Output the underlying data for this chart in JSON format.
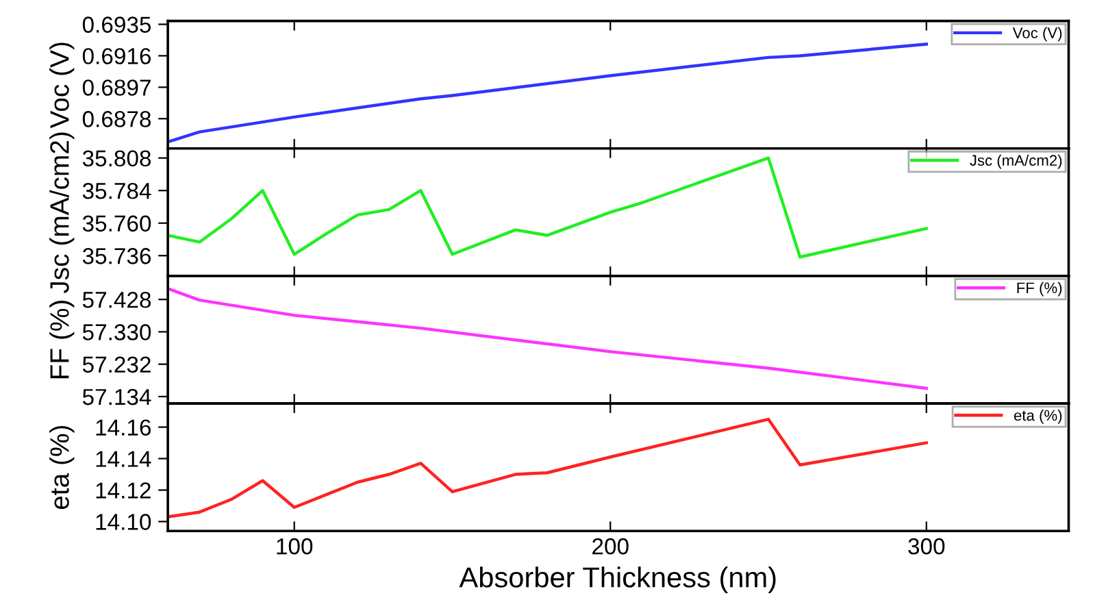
{
  "chart_data": [
    {
      "type": "line",
      "ylabel": "Voc (V)",
      "xlim": [
        60,
        345
      ],
      "xticks": [
        100,
        200,
        300
      ],
      "ylim": [
        0.686,
        0.6937
      ],
      "yticks": [
        0.6878,
        0.6897,
        0.6916,
        0.6935
      ],
      "tick_labels": "y",
      "legend": "top right",
      "grid": false,
      "series": [
        {
          "name": "Voc (V)",
          "color": "#3333ff",
          "x": [
            60,
            70,
            90,
            100,
            140,
            150,
            200,
            250,
            260,
            300
          ],
          "values": [
            0.6864,
            0.687,
            0.6876,
            0.6879,
            0.689,
            0.6892,
            0.6904,
            0.6915,
            0.6916,
            0.6923
          ]
        }
      ]
    },
    {
      "type": "line",
      "ylabel": "Jsc (mA/cm2)",
      "xlim": [
        60,
        345
      ],
      "xticks": [
        100,
        200,
        300
      ],
      "ylim": [
        35.721,
        35.815
      ],
      "yticks": [
        35.736,
        {
          "value": 35.76,
          "label": "35.760"
        },
        35.784,
        35.808
      ],
      "tick_labels": "y",
      "legend": "top right",
      "grid": false,
      "series": [
        {
          "name": "Jsc (mA/cm2)",
          "color": "#22ee22",
          "x": [
            60,
            70,
            80,
            90,
            100,
            110,
            120,
            130,
            140,
            150,
            170,
            180,
            200,
            210,
            250,
            260,
            300
          ],
          "values": [
            35.751,
            35.746,
            35.763,
            35.784,
            35.737,
            35.752,
            35.766,
            35.77,
            35.784,
            35.737,
            35.755,
            35.751,
            35.768,
            35.775,
            35.808,
            35.735,
            35.756
          ]
        }
      ]
    },
    {
      "type": "line",
      "ylabel": "FF (%)",
      "xlim": [
        60,
        345
      ],
      "xticks": [
        100,
        200,
        300
      ],
      "ylim": [
        57.113,
        57.499
      ],
      "yticks": [
        57.134,
        57.232,
        {
          "value": 57.33,
          "label": "57.330"
        },
        57.428
      ],
      "tick_labels": "y",
      "legend": "top right",
      "grid": false,
      "series": [
        {
          "name": "FF (%)",
          "color": "#ff33ff",
          "x": [
            60,
            70,
            100,
            140,
            200,
            250,
            300
          ],
          "values": [
            57.461,
            57.426,
            57.38,
            57.341,
            57.27,
            57.22,
            57.159
          ]
        }
      ]
    },
    {
      "type": "line",
      "ylabel": "eta (%)",
      "xlabel": "Absorber Thickness (nm)",
      "xlim": [
        60,
        345
      ],
      "xticks": [
        100,
        200,
        300
      ],
      "ylim": [
        14.094,
        14.175
      ],
      "yticks": [
        {
          "value": 14.1,
          "label": "14.10"
        },
        {
          "value": 14.12,
          "label": "14.12"
        },
        {
          "value": 14.14,
          "label": "14.14"
        },
        {
          "value": 14.16,
          "label": "14.16"
        }
      ],
      "legend": "top right",
      "grid": false,
      "series": [
        {
          "name": "eta (%)",
          "color": "#ff2222",
          "x": [
            60,
            70,
            80,
            90,
            100,
            110,
            120,
            130,
            140,
            150,
            170,
            180,
            200,
            250,
            260,
            300
          ],
          "values": [
            14.103,
            14.106,
            14.114,
            14.126,
            14.109,
            14.117,
            14.125,
            14.13,
            14.137,
            14.119,
            14.13,
            14.131,
            14.141,
            14.165,
            14.136,
            14.15
          ]
        }
      ]
    }
  ]
}
